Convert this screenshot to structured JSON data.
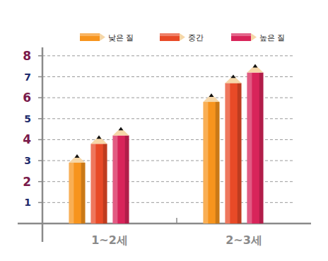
{
  "chart_data": {
    "type": "bar",
    "categories": [
      "1~2세",
      "2~3세"
    ],
    "series": [
      {
        "name": "낮은 질",
        "color": "#f7941d",
        "values": [
          2.9,
          5.8
        ]
      },
      {
        "name": "중간",
        "color": "#e84a27",
        "values": [
          3.8,
          6.7
        ]
      },
      {
        "name": "높은 질",
        "color": "#d8245a",
        "values": [
          4.2,
          7.2
        ]
      }
    ],
    "ylim": [
      0,
      8.4
    ],
    "yticks": [
      1,
      2,
      3,
      4,
      5,
      6,
      7,
      8
    ],
    "grid": true,
    "legend": "top"
  }
}
